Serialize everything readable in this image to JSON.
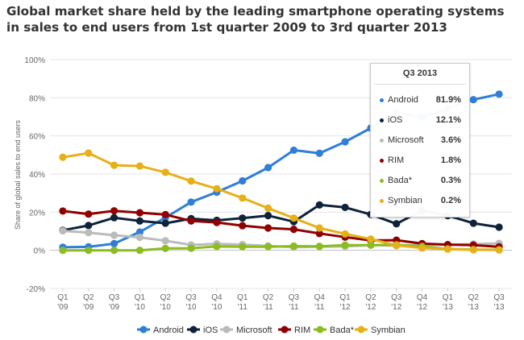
{
  "chart_data": {
    "type": "line",
    "title": "Global market share held by the leading smartphone operating systems in sales to end users from 1st quarter 2009 to 3rd quarter 2013",
    "ylabel": "Share of global sales to end users",
    "xlabel": "",
    "ylim": [
      -20,
      100
    ],
    "y_ticks": [
      "100%",
      "80%",
      "60%",
      "40%",
      "20%",
      "0%",
      "-20%"
    ],
    "y_tick_values": [
      100,
      80,
      60,
      40,
      20,
      0,
      -20
    ],
    "grid": true,
    "legend_position": "bottom",
    "categories": [
      [
        "Q1",
        "'09"
      ],
      [
        "Q2",
        "'09"
      ],
      [
        "Q3",
        "'09"
      ],
      [
        "Q1",
        "'10"
      ],
      [
        "Q2",
        "'10"
      ],
      [
        "Q3",
        "'10"
      ],
      [
        "Q4",
        "'10"
      ],
      [
        "Q1",
        "'11"
      ],
      [
        "Q2",
        "'11"
      ],
      [
        "Q3",
        "'11"
      ],
      [
        "Q4",
        "'11"
      ],
      [
        "Q1",
        "'12"
      ],
      [
        "Q2",
        "'12"
      ],
      [
        "Q3",
        "'12"
      ],
      [
        "Q4",
        "'12"
      ],
      [
        "Q1",
        "'13"
      ],
      [
        "Q2",
        "'13"
      ],
      [
        "Q3",
        "'13"
      ]
    ],
    "series": [
      {
        "name": "Android",
        "color": "#2f7ed8",
        "values": [
          1.6,
          1.8,
          3.5,
          9.6,
          17.2,
          25.3,
          30.5,
          36.4,
          43.4,
          52.5,
          50.9,
          56.9,
          64.1,
          72.4,
          69.7,
          74.4,
          79.0,
          81.9
        ]
      },
      {
        "name": "iOS",
        "color": "#0d233a",
        "values": [
          10.5,
          13.0,
          17.1,
          15.4,
          14.2,
          16.6,
          15.7,
          16.9,
          18.2,
          15.0,
          23.8,
          22.5,
          18.8,
          13.9,
          20.9,
          18.2,
          14.2,
          12.1
        ]
      },
      {
        "name": "Microsoft",
        "color": "#bbbbbb",
        "values": [
          10.2,
          9.3,
          7.9,
          6.8,
          5.0,
          2.8,
          3.4,
          3.0,
          2.3,
          1.6,
          1.9,
          2.0,
          2.7,
          2.4,
          3.0,
          2.9,
          3.3,
          3.6
        ]
      },
      {
        "name": "RIM",
        "color": "#910000",
        "values": [
          20.6,
          19.0,
          20.7,
          19.7,
          18.7,
          15.4,
          14.6,
          12.9,
          11.7,
          11.0,
          8.8,
          6.9,
          5.2,
          5.3,
          3.5,
          3.0,
          2.7,
          1.8
        ]
      },
      {
        "name": "Bada*",
        "color": "#8bbc21",
        "values": [
          0,
          0,
          0,
          0,
          1.0,
          1.1,
          2.0,
          1.9,
          1.9,
          2.2,
          2.1,
          2.7,
          2.7,
          2.9,
          2.1,
          0.7,
          0.4,
          0.3
        ]
      },
      {
        "name": "Symbian",
        "color": "#e6b019",
        "values": [
          48.8,
          51.0,
          44.6,
          44.2,
          40.9,
          36.3,
          32.3,
          27.4,
          22.1,
          16.9,
          11.7,
          8.6,
          5.9,
          2.6,
          1.2,
          0.6,
          0.3,
          0.2
        ]
      }
    ]
  },
  "tooltip": {
    "title": "Q3 2013",
    "rows": [
      {
        "name": "Android",
        "value": "81.9%",
        "color": "#2f7ed8"
      },
      {
        "name": "iOS",
        "value": "12.1%",
        "color": "#0d233a"
      },
      {
        "name": "Microsoft",
        "value": "3.6%",
        "color": "#bbbbbb"
      },
      {
        "name": "RIM",
        "value": "1.8%",
        "color": "#910000"
      },
      {
        "name": "Bada*",
        "value": "0.3%",
        "color": "#8bbc21"
      },
      {
        "name": "Symbian",
        "value": "0.2%",
        "color": "#e6b019"
      }
    ]
  }
}
